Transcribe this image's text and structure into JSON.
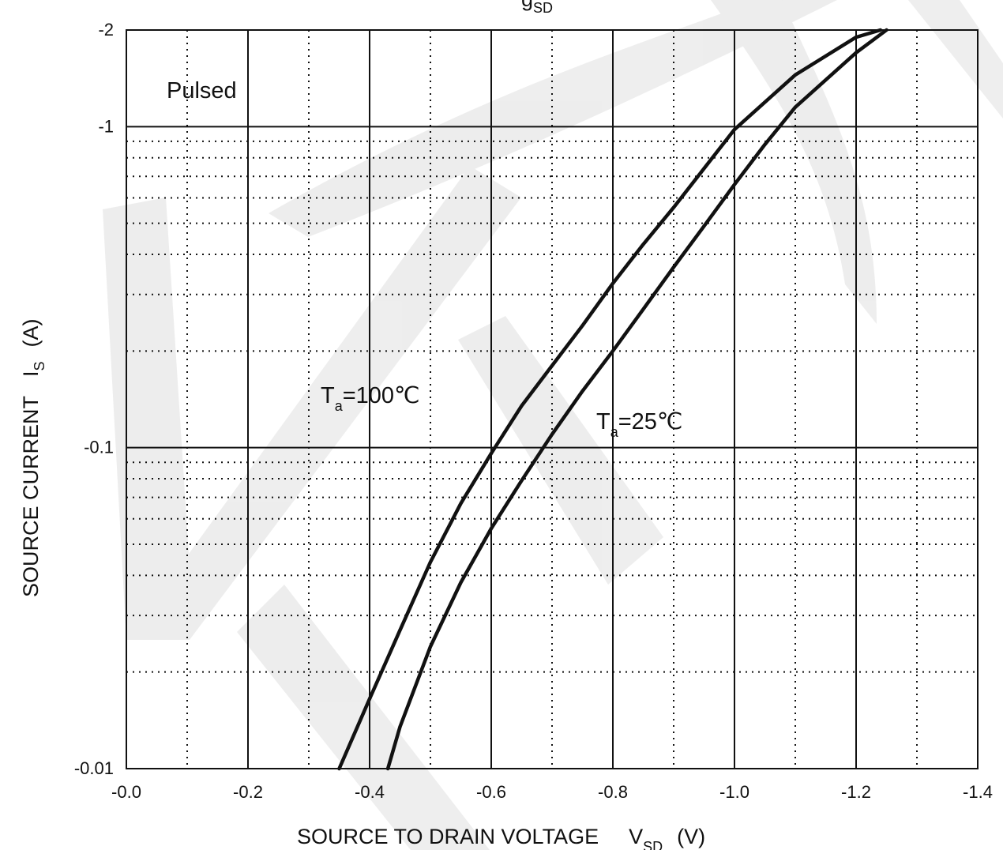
{
  "chart_data": {
    "type": "line",
    "x_scale": "linear",
    "y_scale": "log",
    "xlim": [
      0.0,
      -1.4
    ],
    "ylim": [
      -0.01,
      -2
    ],
    "x_ticks": [
      "-0.0",
      "-0.2",
      "-0.4",
      "-0.6",
      "-0.8",
      "-1.0",
      "-1.2",
      "-1.4"
    ],
    "y_ticks": [
      "-0.01",
      "-0.1",
      "-1",
      "-2"
    ],
    "grid": true,
    "xlabel": {
      "main": "SOURCE TO DRAIN VOLTAGE",
      "symbol": "V",
      "subscript": "SD",
      "unit": "(V)"
    },
    "ylabel": {
      "main": "SOURCE CURRENT",
      "symbol": "I",
      "subscript": "S",
      "unit": "(A)"
    },
    "top_title_partial": "g",
    "top_title_partial_sub": "SD",
    "annotation": "Pulsed",
    "series": [
      {
        "name_main": "T",
        "name_sub": "a",
        "name_rest": "=100℃",
        "label_at": [
          -0.45,
          -0.115
        ],
        "x": [
          -0.35,
          -0.4,
          -0.45,
          -0.5,
          -0.55,
          -0.6,
          -0.65,
          -0.7,
          -0.75,
          -0.8,
          -0.85,
          -0.9,
          -1.0,
          -1.1,
          -1.2,
          -1.24
        ],
        "y": [
          -0.01,
          -0.0165,
          -0.027,
          -0.044,
          -0.067,
          -0.096,
          -0.135,
          -0.18,
          -0.24,
          -0.325,
          -0.43,
          -0.56,
          -0.98,
          -1.45,
          -1.9,
          -2.0
        ]
      },
      {
        "name_main": "T",
        "name_sub": "a",
        "name_rest": "=25℃",
        "label_at": [
          -0.82,
          -0.105
        ],
        "x": [
          -0.43,
          -0.45,
          -0.5,
          -0.55,
          -0.6,
          -0.65,
          -0.7,
          -0.75,
          -0.8,
          -0.85,
          -0.9,
          -0.95,
          -1.0,
          -1.05,
          -1.1,
          -1.2,
          -1.25
        ],
        "y": [
          -0.01,
          -0.0135,
          -0.024,
          -0.038,
          -0.056,
          -0.079,
          -0.11,
          -0.15,
          -0.2,
          -0.27,
          -0.365,
          -0.49,
          -0.66,
          -0.88,
          -1.15,
          -1.7,
          -2.0
        ]
      }
    ]
  }
}
